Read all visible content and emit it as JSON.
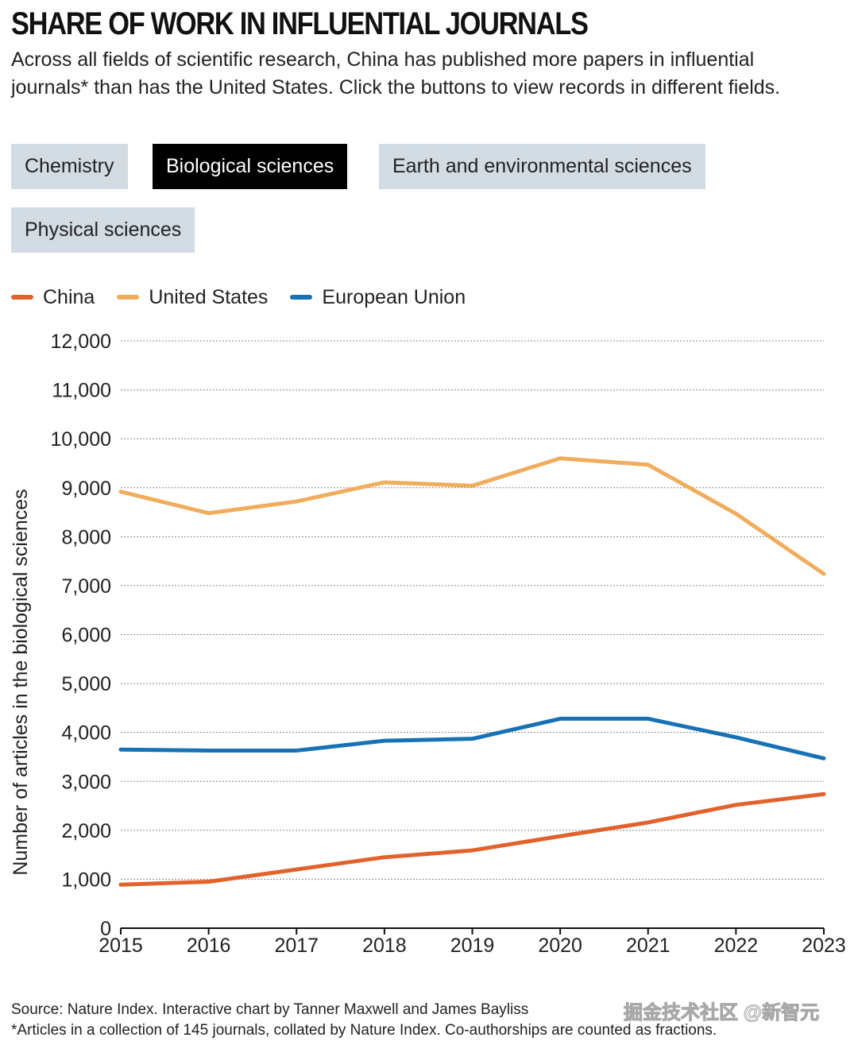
{
  "header": {
    "title": "SHARE OF WORK IN INFLUENTIAL JOURNALS",
    "subtitle": "Across all fields of scientific research, China has published more papers in influential journals* than has the United States. Click the buttons to view records in different fields."
  },
  "buttons": [
    {
      "label": "Chemistry",
      "active": false
    },
    {
      "label": "Biological sciences",
      "active": true
    },
    {
      "label": "Earth and environmental sciences",
      "active": false
    },
    {
      "label": "Physical sciences",
      "active": false
    }
  ],
  "colors": {
    "china": "#e2622c",
    "us": "#f0ad5d",
    "eu": "#1771b5",
    "active_button": "#000000",
    "button": "#d3dce3"
  },
  "chart_data": {
    "type": "line",
    "ylabel": "Number of articles in the biological sciences",
    "xlabel": "",
    "x": [
      2015,
      2016,
      2017,
      2018,
      2019,
      2020,
      2021,
      2022,
      2023
    ],
    "ylim": [
      0,
      12000
    ],
    "yticks": [
      0,
      1000,
      2000,
      3000,
      4000,
      5000,
      6000,
      7000,
      8000,
      9000,
      10000,
      11000,
      12000
    ],
    "ytick_labels": [
      "0",
      "1,000",
      "2,000",
      "3,000",
      "4,000",
      "5,000",
      "6,000",
      "7,000",
      "8,000",
      "9,000",
      "10,000",
      "11,000",
      "12,000"
    ],
    "grid": true,
    "legend_position": "top-left",
    "series": [
      {
        "name": "China",
        "color": "#e2622c",
        "values": [
          890,
          950,
          1200,
          1450,
          1590,
          1880,
          2160,
          2520,
          2740
        ]
      },
      {
        "name": "United States",
        "color": "#f0ad5d",
        "values": [
          8920,
          8480,
          8720,
          9110,
          9040,
          9600,
          9470,
          8470,
          7240
        ]
      },
      {
        "name": "European Union",
        "color": "#1771b5",
        "values": [
          3650,
          3630,
          3630,
          3830,
          3870,
          4280,
          4280,
          3900,
          3470
        ]
      }
    ]
  },
  "footer": {
    "source": "Source: Nature Index. Interactive chart by Tanner Maxwell and James Bayliss",
    "note": "*Articles in a collection of 145 journals, collated by Nature Index. Co-authorships are counted as fractions.",
    "watermark": "掘金技术社区 @新智元"
  }
}
